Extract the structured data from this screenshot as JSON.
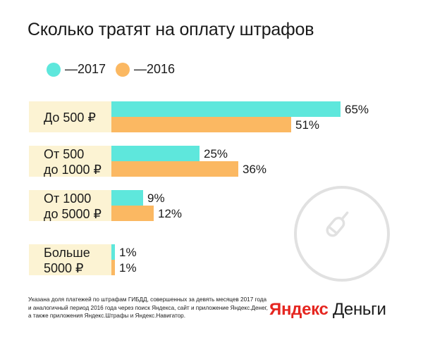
{
  "title": "Сколько тратят на оплату штрафов",
  "colors": {
    "series_2017": "#5ee7dc",
    "series_2016": "#fbb862",
    "category_bg": "#fcf3d3",
    "brand_red": "#e52620",
    "deco": "#e1e1e1"
  },
  "chart_data": {
    "type": "bar",
    "orientation": "horizontal",
    "title": "Сколько тратят на оплату штрафов",
    "categories": [
      [
        "До 500 ₽"
      ],
      [
        "От 500",
        "до 1000 ₽"
      ],
      [
        "От 1000",
        "до 5000 ₽"
      ],
      [
        "Больше",
        "5000 ₽"
      ]
    ],
    "series": [
      {
        "name": "—2017",
        "values": [
          65,
          25,
          9,
          1
        ]
      },
      {
        "name": "—2016",
        "values": [
          51,
          36,
          12,
          1
        ]
      }
    ],
    "data_labels": [
      [
        "65%",
        "25%",
        "9%",
        "1%"
      ],
      [
        "51%",
        "36%",
        "12%",
        "1%"
      ]
    ],
    "unit": "%",
    "xlim": [
      0,
      65
    ],
    "legend_position": "top-left",
    "grid": false
  },
  "footnote": [
    "Указана доля платежей по штрафам ГИБДД, совершенных за девять месяцев 2017 года",
    "и аналогичный период 2016 года через поиск Яндекса, сайт и приложение Яндекс.Денег,",
    "а также приложения Яндекс.Штрафы и Яндекс.Навигатор."
  ],
  "brand": {
    "part1": "Яндекс",
    "part2": " Деньги"
  },
  "icons": {
    "decoration": "ice-cream-icon"
  }
}
